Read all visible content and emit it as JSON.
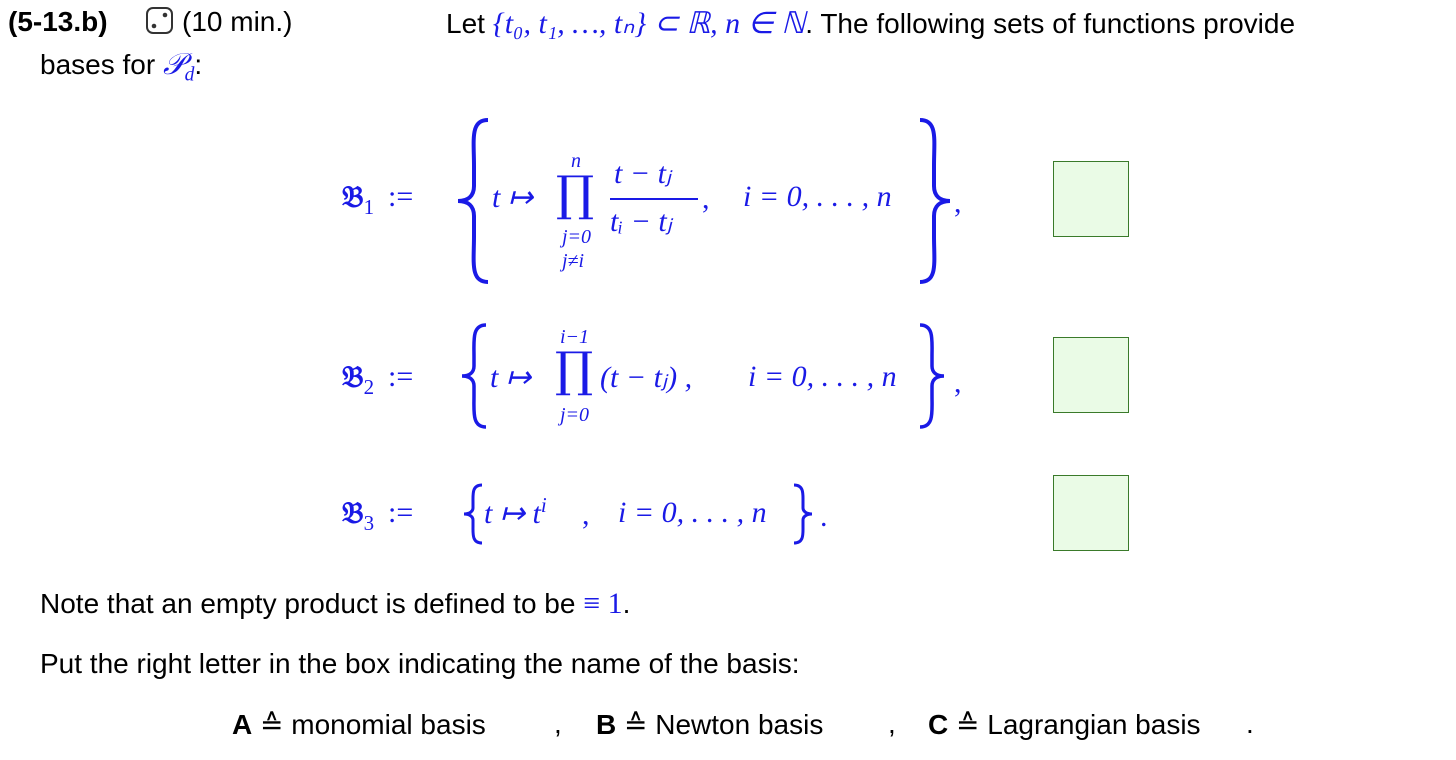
{
  "header": {
    "exercise_id": "(5-13.b)",
    "time": "(10 min.)",
    "intro_let": "Let",
    "intro_set": "{t₀, t₁, …, tₙ} ⊂ ℝ, ",
    "intro_n": "n ∈ ℕ",
    "intro_rest": ". The following sets of functions provide",
    "line2_prefix": "bases for",
    "line2_space": "𝒫",
    "line2_sub": "d",
    "line2_suffix": ":"
  },
  "bases": [
    {
      "symbol": "𝔅",
      "index": "1",
      "assign": ":=",
      "map": "t ↦",
      "prod_upper": "n",
      "prod_lower1": "j=0",
      "prod_lower2": "j≠i",
      "numerator": "t − tⱼ",
      "denominator": "tᵢ − tⱼ",
      "comma": ",",
      "range": "i = 0, . . . , n",
      "tail": ","
    },
    {
      "symbol": "𝔅",
      "index": "2",
      "assign": ":=",
      "map": "t ↦",
      "prod_upper": "i−1",
      "prod_lower": "j=0",
      "factor": "(t − tⱼ) ,",
      "range": "i = 0, . . . , n",
      "tail": ","
    },
    {
      "symbol": "𝔅",
      "index": "3",
      "assign": ":=",
      "map": "t ↦ t",
      "power": "i",
      "comma": ",",
      "range": "i = 0, . . . , n",
      "tail": "."
    }
  ],
  "note": {
    "text": "Note that an empty product is defined to be",
    "value": "≡ 1",
    "end": "."
  },
  "instruction": "Put the right letter in the box indicating the name of the basis:",
  "legend": [
    {
      "letter": "A",
      "sym": "≙",
      "name": "monomial basis",
      "sep": ","
    },
    {
      "letter": "B",
      "sym": "≙",
      "name": "Newton basis",
      "sep": ","
    },
    {
      "letter": "C",
      "sym": "≙",
      "name": "Lagrangian basis",
      "sep": "."
    }
  ],
  "colors": {
    "math": "#1a1ae6",
    "box_fill": "#eafbe6",
    "box_border": "#3a7a2a"
  }
}
